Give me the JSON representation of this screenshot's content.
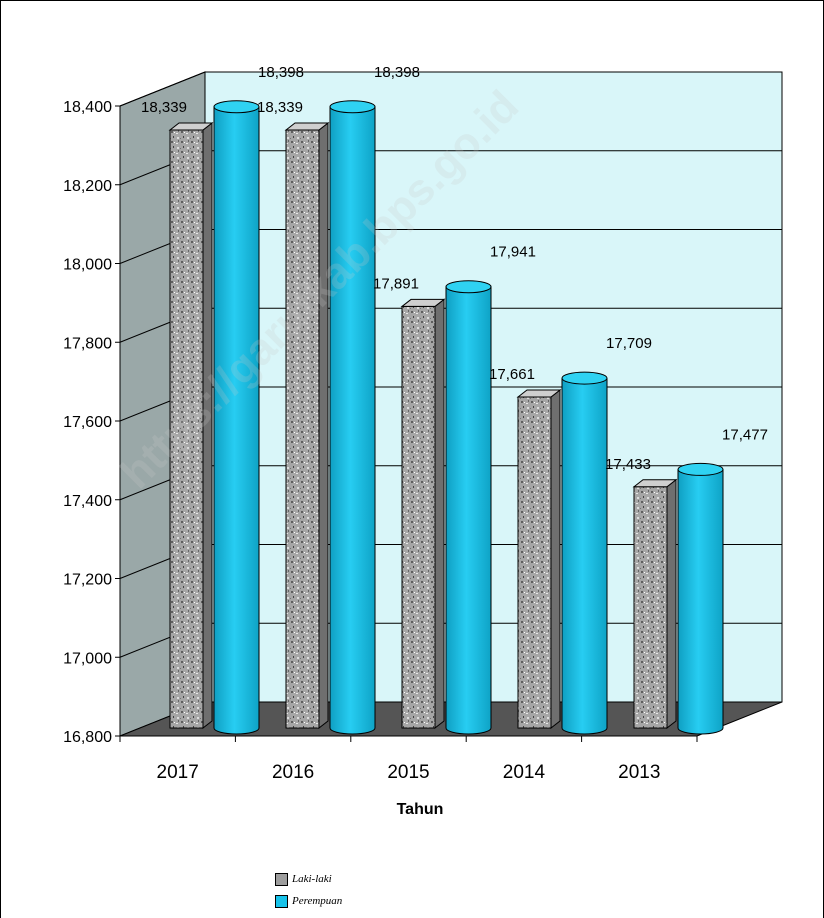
{
  "chart_data": {
    "type": "bar",
    "categories": [
      "2017",
      "2016",
      "2015",
      "2014",
      "2013"
    ],
    "series": [
      {
        "name": "Laki-laki",
        "values": [
          18339,
          18339,
          17891,
          17661,
          17433
        ],
        "labels": [
          "18,339",
          "18,339",
          "17,891",
          "17,661",
          "17,433"
        ]
      },
      {
        "name": "Perempuan",
        "values": [
          18398,
          18398,
          17941,
          17709,
          17477
        ],
        "labels": [
          "18,398",
          "18,398",
          "17,941",
          "17,709",
          "17,477"
        ]
      }
    ],
    "xlabel": "Tahun",
    "ylabel": "",
    "ylim": [
      16800,
      18400
    ],
    "yticks": [
      "16,800",
      "17,000",
      "17,200",
      "17,400",
      "17,600",
      "17,800",
      "18,000",
      "18,200",
      "18,400"
    ],
    "grid": true,
    "legend_position": "bottom",
    "colors": {
      "laki": "#a0a0a0",
      "perempuan": "#18c3ea",
      "plot_bg": "#d9f6f9",
      "floor": "#555555",
      "wall": "#9aa8a8"
    },
    "watermark": "https://garutkab.bps.go.id"
  }
}
